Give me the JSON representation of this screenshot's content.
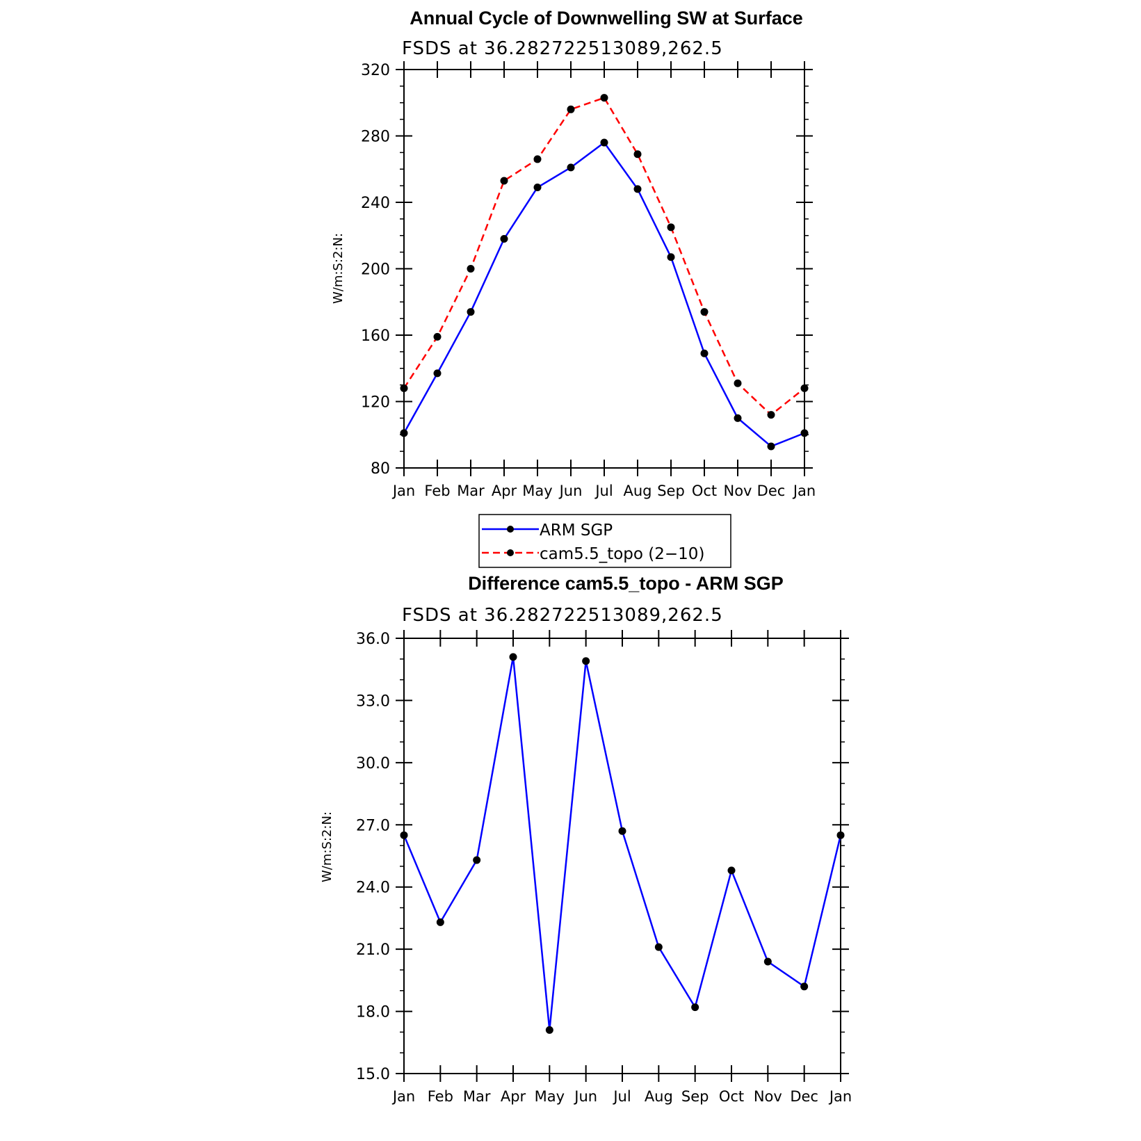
{
  "chart_data": [
    {
      "type": "line",
      "title": "Annual Cycle of Downwelling SW at Surface",
      "subtitle": "FSDS at 36.282722513089,262.5",
      "ylabel": "W/m:S:2:N:",
      "categories": [
        "Jan",
        "Feb",
        "Mar",
        "Apr",
        "May",
        "Jun",
        "Jul",
        "Aug",
        "Sep",
        "Oct",
        "Nov",
        "Dec",
        "Jan"
      ],
      "ylim": [
        80,
        320
      ],
      "yticks": [
        "80",
        "120",
        "160",
        "200",
        "240",
        "280",
        "320"
      ],
      "series": [
        {
          "name": "ARM SGP",
          "color": "#0000ff",
          "dash": "solid",
          "values": [
            101,
            137,
            174,
            218,
            249,
            261,
            276,
            248,
            207,
            149,
            110,
            93,
            101
          ]
        },
        {
          "name": "cam5.5_topo (2−10)",
          "color": "#ff0000",
          "dash": "dashed",
          "values": [
            128,
            159,
            200,
            253,
            266,
            296,
            303,
            269,
            225,
            174,
            131,
            112,
            128
          ]
        }
      ],
      "legend": "below"
    },
    {
      "type": "line",
      "title": "Difference cam5.5_topo - ARM SGP",
      "subtitle": "FSDS at 36.282722513089,262.5",
      "ylabel": "W/m:S:2:N:",
      "categories": [
        "Jan",
        "Feb",
        "Mar",
        "Apr",
        "May",
        "Jun",
        "Jul",
        "Aug",
        "Sep",
        "Oct",
        "Nov",
        "Dec",
        "Jan"
      ],
      "ylim": [
        15,
        36
      ],
      "yticks": [
        "15.0",
        "18.0",
        "21.0",
        "24.0",
        "27.0",
        "30.0",
        "33.0",
        "36.0"
      ],
      "series": [
        {
          "color": "#0000ff",
          "dash": "solid",
          "values": [
            26.5,
            22.3,
            25.3,
            35.1,
            17.1,
            34.9,
            26.7,
            21.1,
            18.2,
            24.8,
            20.4,
            19.2,
            26.5
          ]
        }
      ]
    }
  ]
}
